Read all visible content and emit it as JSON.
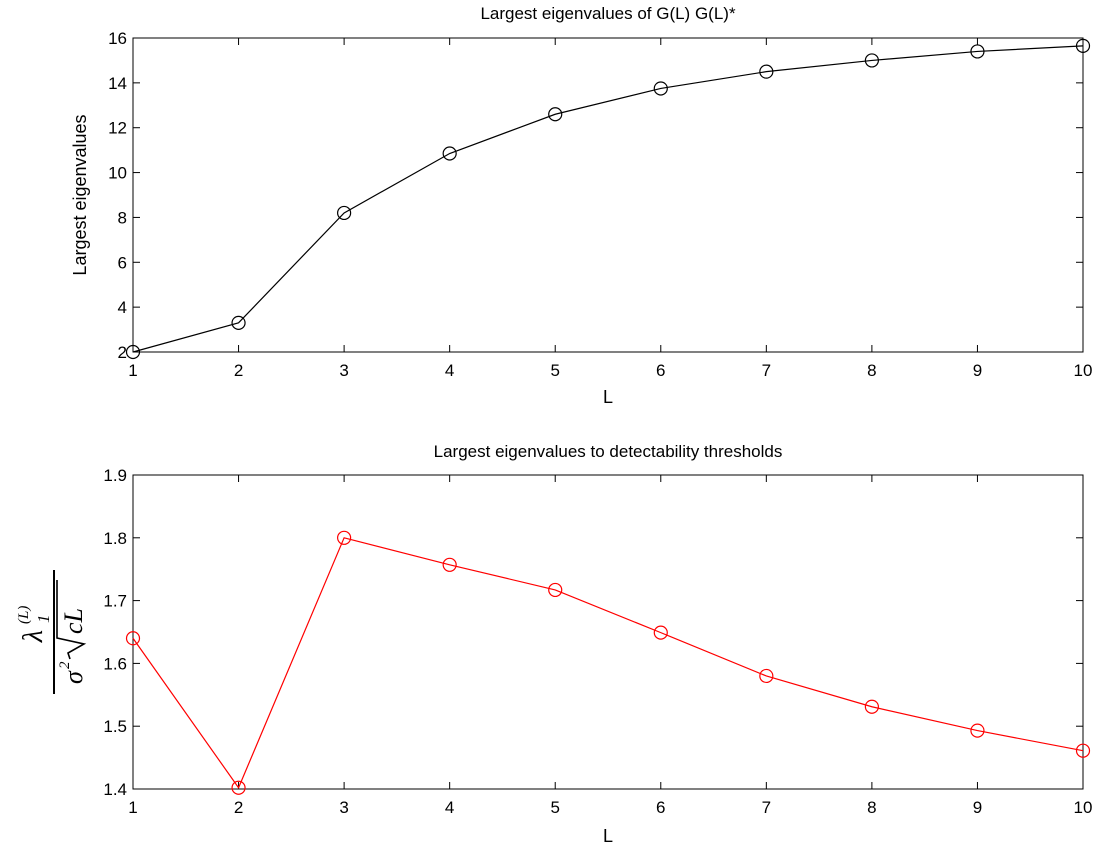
{
  "chart_data": [
    {
      "type": "line",
      "title": "Largest eigenvalues of G(L) G(L)*",
      "xlabel": "L",
      "ylabel": "Largest eigenvalues",
      "x": [
        1,
        2,
        3,
        4,
        5,
        6,
        7,
        8,
        9,
        10
      ],
      "xlim": [
        1,
        10
      ],
      "ylim": [
        2,
        16
      ],
      "xticks": [
        "1",
        "2",
        "3",
        "4",
        "5",
        "6",
        "7",
        "8",
        "9",
        "10"
      ],
      "yticks": [
        "2",
        "4",
        "6",
        "8",
        "10",
        "12",
        "14",
        "16"
      ],
      "grid": false,
      "marker": "circle",
      "color": "#000000",
      "series": [
        {
          "values": [
            2.0,
            3.3,
            8.2,
            10.85,
            12.6,
            13.75,
            14.5,
            15.0,
            15.4,
            15.65
          ]
        }
      ]
    },
    {
      "type": "line",
      "title": "Largest eigenvalues to detectability thresholds",
      "xlabel": "L",
      "ylabel": "λ₁⁽ᴸ⁾ / (σ² √(cL))",
      "x": [
        1,
        2,
        3,
        4,
        5,
        6,
        7,
        8,
        9,
        10
      ],
      "xlim": [
        1,
        10
      ],
      "ylim": [
        1.4,
        1.9
      ],
      "xticks": [
        "1",
        "2",
        "3",
        "4",
        "5",
        "6",
        "7",
        "8",
        "9",
        "10"
      ],
      "yticks": [
        "1.4",
        "1.5",
        "1.6",
        "1.7",
        "1.8",
        "1.9"
      ],
      "grid": false,
      "marker": "circle",
      "color": "#ff0000",
      "series": [
        {
          "values": [
            1.64,
            1.402,
            1.8,
            1.757,
            1.717,
            1.649,
            1.58,
            1.531,
            1.493,
            1.461
          ]
        }
      ]
    }
  ]
}
